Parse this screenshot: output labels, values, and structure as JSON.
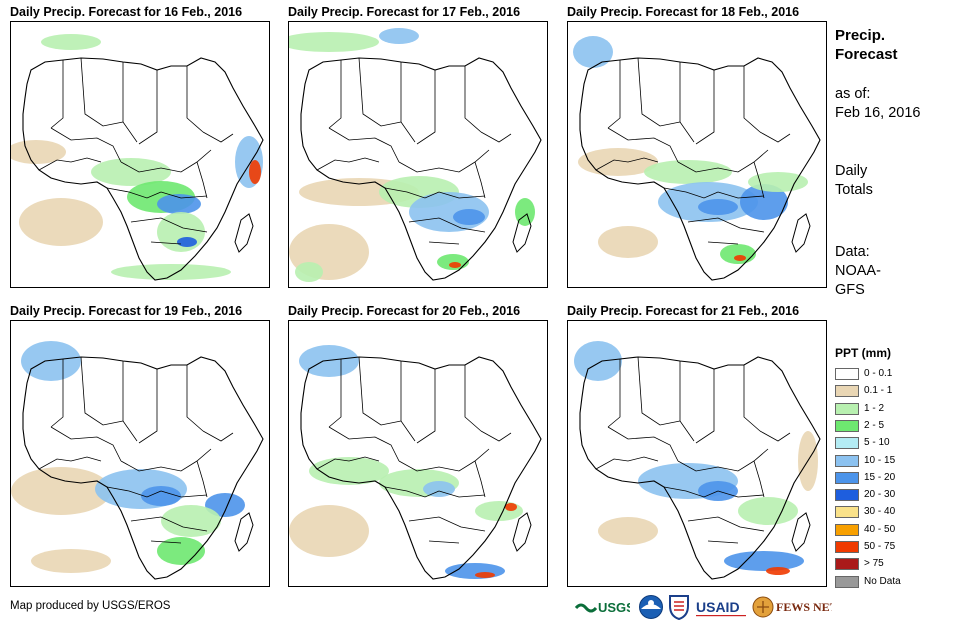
{
  "panels": [
    {
      "title": "Daily Precip. Forecast for 16 Feb., 2016"
    },
    {
      "title": "Daily Precip. Forecast for 17 Feb., 2016"
    },
    {
      "title": "Daily Precip. Forecast for 18 Feb., 2016"
    },
    {
      "title": "Daily Precip. Forecast for 19 Feb., 2016"
    },
    {
      "title": "Daily Precip. Forecast for 20 Feb., 2016"
    },
    {
      "title": "Daily Precip. Forecast for 21 Feb., 2016"
    }
  ],
  "side": {
    "heading_line1": "Precip.",
    "heading_line2": "Forecast",
    "asof_label": "as of:",
    "asof_date": "Feb 16, 2016",
    "totals_line1": "Daily",
    "totals_line2": "Totals",
    "data_line1": "Data:",
    "data_line2": "NOAA-",
    "data_line3": "GFS"
  },
  "legend": {
    "title": "PPT (mm)",
    "items": [
      {
        "label": "0 - 0.1",
        "color": "#ffffff"
      },
      {
        "label": "0.1 - 1",
        "color": "#e9d6b4"
      },
      {
        "label": "1 - 2",
        "color": "#b8f0b0"
      },
      {
        "label": "2 - 5",
        "color": "#6ee870"
      },
      {
        "label": "5 - 10",
        "color": "#b4ecf4"
      },
      {
        "label": "10 - 15",
        "color": "#8cc2f0"
      },
      {
        "label": "15 - 20",
        "color": "#4c94ea"
      },
      {
        "label": "20 - 30",
        "color": "#1e5ede"
      },
      {
        "label": "30 - 40",
        "color": "#fae28a"
      },
      {
        "label": "40 - 50",
        "color": "#f8a000"
      },
      {
        "label": "50 - 75",
        "color": "#f03a00"
      },
      {
        "label": "> 75",
        "color": "#aa1a1a"
      },
      {
        "label": "No Data",
        "color": "#999999"
      }
    ]
  },
  "credit": "Map produced by USGS/EROS",
  "logos": {
    "usgs": "USGS",
    "usaid": "USAID",
    "fewsnet": "FEWS NET"
  }
}
